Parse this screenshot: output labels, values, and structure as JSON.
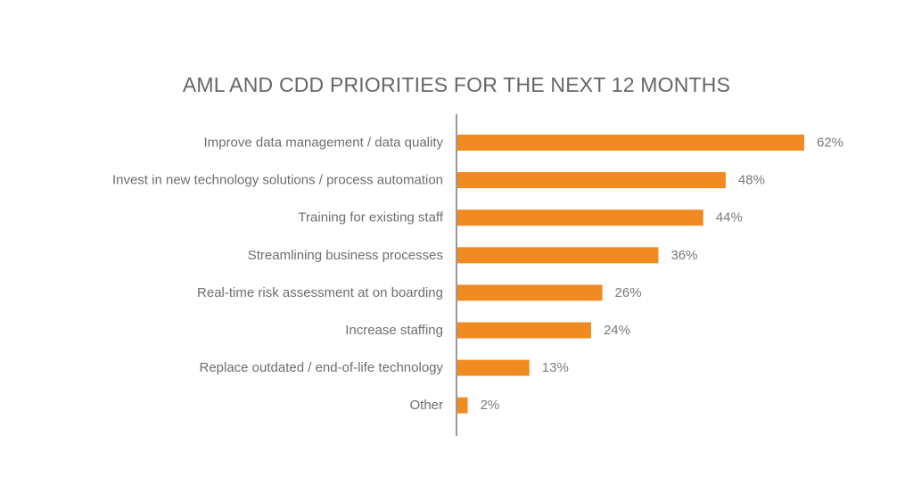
{
  "chart_data": {
    "type": "bar",
    "orientation": "horizontal",
    "title": "AML AND CDD PRIORITIES FOR THE NEXT 12 MONTHS",
    "categories": [
      "Improve data management / data quality",
      "Invest in new technology solutions / process automation",
      "Training for existing staff",
      "Streamlining business processes",
      "Real-time risk assessment at on boarding",
      "Increase staffing",
      "Replace outdated / end-of-life technology",
      "Other"
    ],
    "values": [
      62,
      48,
      44,
      36,
      26,
      24,
      13,
      2
    ],
    "value_labels": [
      "62%",
      "48%",
      "44%",
      "36%",
      "26%",
      "24%",
      "13%",
      "2%"
    ],
    "value_unit": "%",
    "xlim": [
      0,
      62
    ],
    "grid": false,
    "legend": "none",
    "bar_color": "#f28a22",
    "axis_color": "#9a9a9a"
  }
}
